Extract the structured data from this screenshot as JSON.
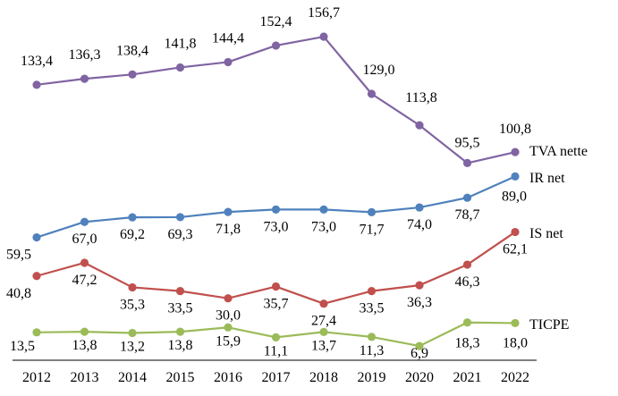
{
  "chart_data": {
    "type": "line",
    "x": [
      "2012",
      "2013",
      "2014",
      "2015",
      "2016",
      "2017",
      "2018",
      "2019",
      "2020",
      "2021",
      "2022"
    ],
    "ylim": [
      0,
      160
    ],
    "grid": false,
    "legend": "inline labels at right end of each series",
    "series": [
      {
        "name": "TVA nette",
        "color": "#8064a2",
        "values": [
          133.4,
          136.3,
          138.4,
          141.8,
          144.4,
          152.4,
          156.7,
          129.0,
          113.8,
          95.5,
          100.8
        ],
        "labels": [
          "133,4",
          "136,3",
          "138,4",
          "141,8",
          "144,4",
          "152,4",
          "156,7",
          "129,0",
          "113,8",
          "95,5",
          "100,8"
        ]
      },
      {
        "name": "IR net",
        "color": "#4f81bd",
        "values": [
          59.5,
          67.0,
          69.2,
          69.3,
          71.8,
          73.0,
          73.0,
          71.7,
          74.0,
          78.7,
          89.0
        ],
        "labels": [
          "59,5",
          "67,0",
          "69,2",
          "69,3",
          "71,8",
          "73,0",
          "73,0",
          "71,7",
          "74,0",
          "78,7",
          "89,0"
        ]
      },
      {
        "name": "IS net",
        "color": "#c0504d",
        "values": [
          40.8,
          47.2,
          35.3,
          33.5,
          30.0,
          35.7,
          27.4,
          33.5,
          36.3,
          46.3,
          62.1
        ],
        "labels": [
          "40,8",
          "47,2",
          "35,3",
          "33,5",
          "30,0",
          "35,7",
          "27,4",
          "33,5",
          "36,3",
          "46,3",
          "62,1"
        ]
      },
      {
        "name": "TICPE",
        "color": "#9bbb59",
        "values": [
          13.5,
          13.8,
          13.2,
          13.8,
          15.9,
          11.1,
          13.7,
          11.3,
          6.9,
          18.3,
          18.0
        ],
        "labels": [
          "13,5",
          "13,8",
          "13,2",
          "13,8",
          "15,9",
          "11,1",
          "13,7",
          "11,3",
          "6,9",
          "18,3",
          "18,0"
        ]
      }
    ]
  }
}
